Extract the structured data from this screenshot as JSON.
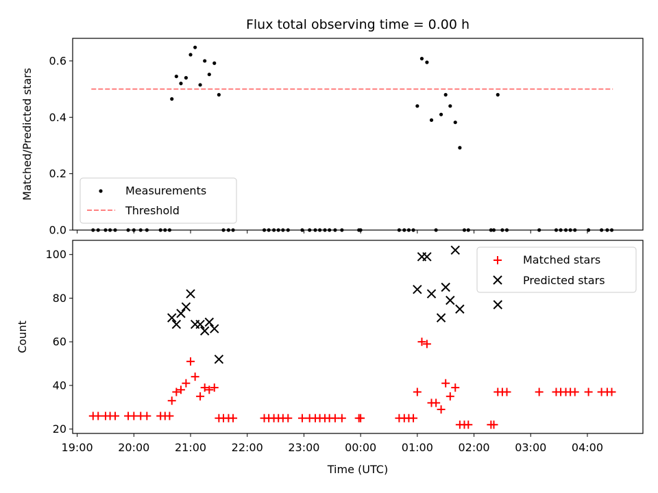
{
  "title": "Flux total observing time = 0.00 h",
  "chart_data": [
    {
      "type": "scatter",
      "ylabel": "Matched/Predicted stars",
      "xlim_hours": [
        18.92,
        28.98
      ],
      "ylim": [
        0,
        0.68
      ],
      "yticks": [
        0.0,
        0.2,
        0.4,
        0.6
      ],
      "yticklabels": [
        "0.0",
        "0.2",
        "0.4",
        "0.6"
      ],
      "legend_position": "lower-left",
      "series": [
        {
          "name": "Measurements",
          "color": "#000000",
          "marker": "dot",
          "points": [
            [
              19.28,
              0
            ],
            [
              19.37,
              0
            ],
            [
              19.5,
              0
            ],
            [
              19.58,
              0
            ],
            [
              19.67,
              0
            ],
            [
              19.9,
              0
            ],
            [
              20.0,
              0
            ],
            [
              20.12,
              0
            ],
            [
              20.23,
              0
            ],
            [
              20.47,
              0
            ],
            [
              20.55,
              0
            ],
            [
              20.63,
              0
            ],
            [
              20.67,
              0.465
            ],
            [
              20.75,
              0.545
            ],
            [
              20.83,
              0.52
            ],
            [
              20.92,
              0.54
            ],
            [
              21.0,
              0.622
            ],
            [
              21.08,
              0.648
            ],
            [
              21.17,
              0.515
            ],
            [
              21.25,
              0.6
            ],
            [
              21.33,
              0.552
            ],
            [
              21.42,
              0.592
            ],
            [
              21.5,
              0.48
            ],
            [
              21.58,
              0
            ],
            [
              21.67,
              0
            ],
            [
              21.75,
              0
            ],
            [
              22.3,
              0
            ],
            [
              22.38,
              0
            ],
            [
              22.47,
              0
            ],
            [
              22.55,
              0
            ],
            [
              22.63,
              0
            ],
            [
              22.72,
              0
            ],
            [
              22.97,
              0
            ],
            [
              23.1,
              0
            ],
            [
              23.2,
              0
            ],
            [
              23.28,
              0
            ],
            [
              23.37,
              0
            ],
            [
              23.45,
              0
            ],
            [
              23.55,
              0
            ],
            [
              23.67,
              0
            ],
            [
              23.97,
              0
            ],
            [
              24.0,
              0
            ],
            [
              24.68,
              0
            ],
            [
              24.77,
              0
            ],
            [
              24.85,
              0
            ],
            [
              24.93,
              0
            ],
            [
              25.0,
              0.44
            ],
            [
              25.08,
              0.608
            ],
            [
              25.17,
              0.595
            ],
            [
              25.25,
              0.39
            ],
            [
              25.33,
              0
            ],
            [
              25.42,
              0.41
            ],
            [
              25.5,
              0.48
            ],
            [
              25.58,
              0.44
            ],
            [
              25.67,
              0.382
            ],
            [
              25.75,
              0.292
            ],
            [
              25.83,
              0
            ],
            [
              25.9,
              0
            ],
            [
              26.3,
              0
            ],
            [
              26.35,
              0
            ],
            [
              26.42,
              0.48
            ],
            [
              26.5,
              0
            ],
            [
              26.58,
              0
            ],
            [
              27.15,
              0
            ],
            [
              27.45,
              0
            ],
            [
              27.53,
              0
            ],
            [
              27.62,
              0
            ],
            [
              27.7,
              0
            ],
            [
              27.78,
              0
            ],
            [
              28.02,
              0
            ],
            [
              28.25,
              0
            ],
            [
              28.35,
              0
            ],
            [
              28.43,
              0
            ]
          ]
        },
        {
          "name": "Threshold",
          "color": "#ff7f7f",
          "style": "dashed",
          "points": [
            [
              19.25,
              0.5
            ],
            [
              28.45,
              0.5
            ]
          ]
        }
      ]
    },
    {
      "type": "scatter",
      "ylabel": "Count",
      "xlabel": "Time (UTC)",
      "xlim_hours": [
        18.92,
        28.98
      ],
      "ylim": [
        18,
        106.5
      ],
      "yticks": [
        20,
        40,
        60,
        80,
        100
      ],
      "yticklabels": [
        "20",
        "40",
        "60",
        "80",
        "100"
      ],
      "xticks_hours": [
        19,
        20,
        21,
        22,
        23,
        24,
        25,
        26,
        27,
        28
      ],
      "xticklabels": [
        "19:00",
        "20:00",
        "21:00",
        "22:00",
        "23:00",
        "00:00",
        "01:00",
        "02:00",
        "03:00",
        "04:00"
      ],
      "legend_position": "top-right",
      "series": [
        {
          "name": "Matched stars",
          "color": "#ff0000",
          "marker": "plus",
          "points": [
            [
              19.28,
              26
            ],
            [
              19.37,
              26
            ],
            [
              19.5,
              26
            ],
            [
              19.58,
              26
            ],
            [
              19.67,
              26
            ],
            [
              19.9,
              26
            ],
            [
              20.0,
              26
            ],
            [
              20.12,
              26
            ],
            [
              20.23,
              26
            ],
            [
              20.47,
              26
            ],
            [
              20.55,
              26
            ],
            [
              20.63,
              26
            ],
            [
              20.67,
              33
            ],
            [
              20.75,
              37
            ],
            [
              20.83,
              38
            ],
            [
              20.92,
              41
            ],
            [
              21.0,
              51
            ],
            [
              21.08,
              44
            ],
            [
              21.17,
              35
            ],
            [
              21.25,
              39
            ],
            [
              21.33,
              38
            ],
            [
              21.42,
              39
            ],
            [
              21.5,
              25
            ],
            [
              21.58,
              25
            ],
            [
              21.67,
              25
            ],
            [
              21.75,
              25
            ],
            [
              22.3,
              25
            ],
            [
              22.38,
              25
            ],
            [
              22.47,
              25
            ],
            [
              22.55,
              25
            ],
            [
              22.63,
              25
            ],
            [
              22.72,
              25
            ],
            [
              22.97,
              25
            ],
            [
              23.1,
              25
            ],
            [
              23.2,
              25
            ],
            [
              23.28,
              25
            ],
            [
              23.37,
              25
            ],
            [
              23.45,
              25
            ],
            [
              23.55,
              25
            ],
            [
              23.67,
              25
            ],
            [
              23.97,
              25
            ],
            [
              24.0,
              25
            ],
            [
              24.68,
              25
            ],
            [
              24.77,
              25
            ],
            [
              24.85,
              25
            ],
            [
              24.93,
              25
            ],
            [
              25.0,
              37
            ],
            [
              25.08,
              60
            ],
            [
              25.17,
              59
            ],
            [
              25.25,
              32
            ],
            [
              25.33,
              32
            ],
            [
              25.42,
              29
            ],
            [
              25.5,
              41
            ],
            [
              25.58,
              35
            ],
            [
              25.67,
              39
            ],
            [
              25.75,
              22
            ],
            [
              25.83,
              22
            ],
            [
              25.9,
              22
            ],
            [
              26.3,
              22
            ],
            [
              26.35,
              22
            ],
            [
              26.42,
              37
            ],
            [
              26.5,
              37
            ],
            [
              26.58,
              37
            ],
            [
              27.15,
              37
            ],
            [
              27.45,
              37
            ],
            [
              27.53,
              37
            ],
            [
              27.62,
              37
            ],
            [
              27.7,
              37
            ],
            [
              27.78,
              37
            ],
            [
              28.02,
              37
            ],
            [
              28.25,
              37
            ],
            [
              28.35,
              37
            ],
            [
              28.43,
              37
            ]
          ]
        },
        {
          "name": "Predicted stars",
          "color": "#000000",
          "marker": "x",
          "points": [
            [
              20.67,
              71
            ],
            [
              20.75,
              68
            ],
            [
              20.83,
              73
            ],
            [
              20.92,
              76
            ],
            [
              21.0,
              82
            ],
            [
              21.08,
              68
            ],
            [
              21.17,
              68
            ],
            [
              21.25,
              65
            ],
            [
              21.33,
              69
            ],
            [
              21.42,
              66
            ],
            [
              21.5,
              52
            ],
            [
              25.0,
              84
            ],
            [
              25.08,
              99
            ],
            [
              25.17,
              99
            ],
            [
              25.25,
              82
            ],
            [
              25.42,
              71
            ],
            [
              25.5,
              85
            ],
            [
              25.58,
              79
            ],
            [
              25.67,
              102
            ],
            [
              25.75,
              75
            ],
            [
              26.42,
              77
            ]
          ]
        }
      ]
    }
  ]
}
